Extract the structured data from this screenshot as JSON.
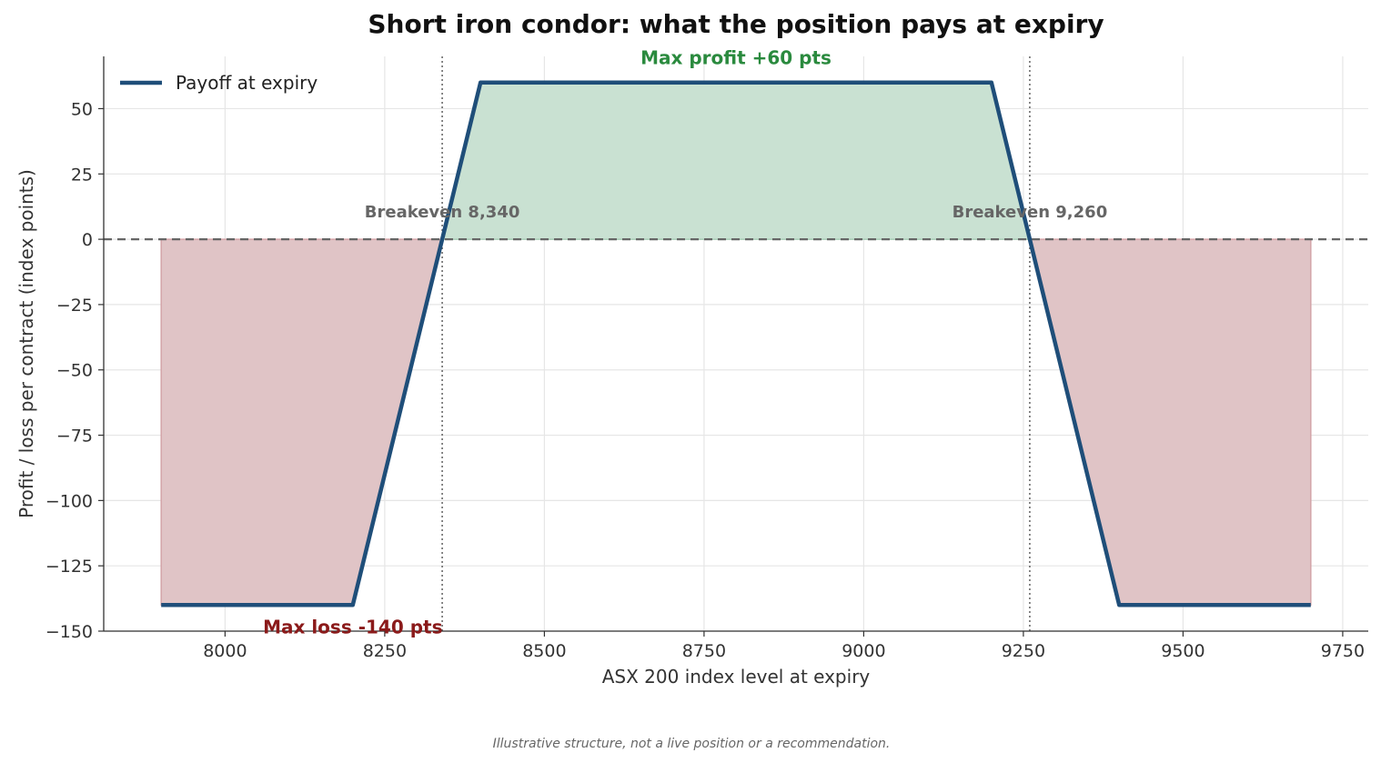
{
  "chart_data": {
    "type": "line",
    "title": "Short iron condor: what the position pays at expiry",
    "xlabel": "ASX 200 index level at expiry",
    "ylabel": "Profit / loss per contract (index points)",
    "xlim": [
      7810,
      9790
    ],
    "ylim": [
      -150,
      70
    ],
    "xticks": [
      8000,
      8250,
      8500,
      8750,
      9000,
      9250,
      9500,
      9750
    ],
    "yticks": [
      -150,
      -125,
      -100,
      -75,
      -50,
      -25,
      0,
      25,
      50
    ],
    "xtick_labels": [
      "8000",
      "8250",
      "8500",
      "8750",
      "9000",
      "9250",
      "9500",
      "9750"
    ],
    "ytick_labels": [
      "−150",
      "−125",
      "−100",
      "−75",
      "−50",
      "−25",
      "0",
      "25",
      "50"
    ],
    "grid": true,
    "legend_position": "top-left",
    "series": [
      {
        "name": "Payoff at expiry",
        "x": [
          7900,
          8200,
          8400,
          9200,
          9400,
          9700
        ],
        "y": [
          -140,
          -140,
          60,
          60,
          -140,
          -140
        ],
        "color": "#1f4e79"
      }
    ],
    "zero_line": {
      "y": 0,
      "style": "dashed",
      "color": "#666666"
    },
    "breakevens": [
      {
        "x": 8340,
        "label": "Breakeven 8,340"
      },
      {
        "x": 9260,
        "label": "Breakeven 9,260"
      }
    ],
    "annotations": {
      "max_profit": {
        "text": "Max profit +60 pts",
        "x": 8800,
        "y": 60,
        "color": "#2a8a3e"
      },
      "max_loss": {
        "text": "Max loss -140 pts",
        "x": 8200,
        "y": -140,
        "color": "#8b1a1a"
      }
    },
    "fill_colors": {
      "profit": "#c9e1d2",
      "loss": "#e0c4c6"
    }
  },
  "footnote": "Illustrative structure, not a live position or a recommendation."
}
